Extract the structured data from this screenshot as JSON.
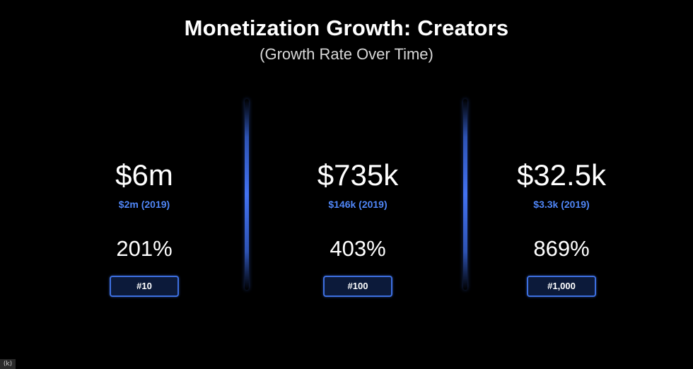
{
  "slide": {
    "title": "Monetization Growth: Creators",
    "subtitle": "(Growth Rate Over Time)",
    "accent_color": "#4f86f7",
    "background_color": "#000000",
    "columns": [
      {
        "value": "$6m",
        "base": "$2m (2019)",
        "growth": "201%",
        "rank": "#10"
      },
      {
        "value": "$735k",
        "base": "$146k (2019)",
        "growth": "403%",
        "rank": "#100"
      },
      {
        "value": "$32.5k",
        "base": "$3.3k (2019)",
        "growth": "869%",
        "rank": "#1,000"
      }
    ]
  },
  "corner_mark": {
    "icon": "logo-mark",
    "text": "(k)"
  }
}
